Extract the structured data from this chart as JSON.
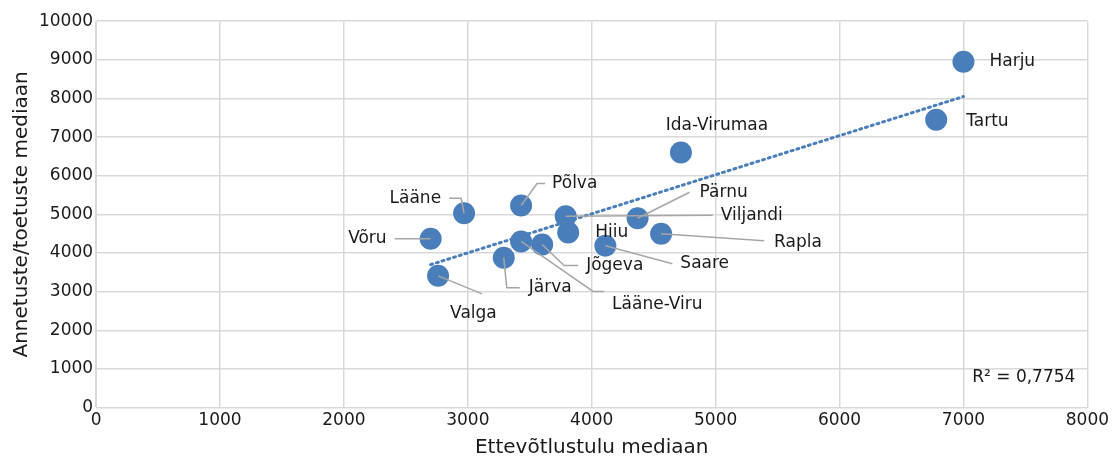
{
  "chart_data": {
    "type": "scatter",
    "xlabel": "Ettevõtlustulu mediaan",
    "ylabel": "Annetuste/toetuste mediaan",
    "xlim": [
      0,
      8000
    ],
    "xticks": [
      0,
      1000,
      2000,
      3000,
      4000,
      5000,
      6000,
      7000,
      8000
    ],
    "ylim": [
      0,
      10000
    ],
    "yticks": [
      0,
      1000,
      2000,
      3000,
      4000,
      5000,
      6000,
      7000,
      8000,
      9000,
      10000
    ],
    "grid": true,
    "legend": false,
    "series": [
      {
        "color": "#4a7ebb",
        "marker": "circle",
        "x": [
          7000,
          6780,
          4720,
          4370,
          3790,
          3810,
          4560,
          4110,
          3600,
          3430,
          3290,
          2760,
          2970,
          3430,
          2700
        ],
        "values": [
          8950,
          7450,
          6600,
          4900,
          4950,
          4530,
          4500,
          4190,
          4220,
          4300,
          3880,
          3410,
          5030,
          5230,
          4370
        ]
      },
      {
        "type": "line",
        "color": "#4a7ebb",
        "line_style": "dotted",
        "marker": "none",
        "x": [
          2700,
          7000
        ],
        "values": [
          3700,
          8050
        ]
      }
    ],
    "annotations": [
      {
        "text": "Harju",
        "x": 7000,
        "y": 8950
      },
      {
        "text": "Tartu",
        "x": 6780,
        "y": 7450
      },
      {
        "text": "Ida-Virumaa",
        "x": 4720,
        "y": 6600
      },
      {
        "text": "Pärnu",
        "x": 4370,
        "y": 4900
      },
      {
        "text": "Viljandi",
        "x": 3790,
        "y": 4950
      },
      {
        "text": "Hiiu",
        "x": 3810,
        "y": 4530
      },
      {
        "text": "Rapla",
        "x": 4560,
        "y": 4500
      },
      {
        "text": "Saare",
        "x": 4110,
        "y": 4190
      },
      {
        "text": "Jõgeva",
        "x": 3600,
        "y": 4220
      },
      {
        "text": "Lääne-Viru",
        "x": 3430,
        "y": 4300
      },
      {
        "text": "Järva",
        "x": 3290,
        "y": 3880
      },
      {
        "text": "Valga",
        "x": 2760,
        "y": 3410
      },
      {
        "text": "Lääne",
        "x": 2970,
        "y": 5030
      },
      {
        "text": "Põlva",
        "x": 3430,
        "y": 5230
      },
      {
        "text": "Võru",
        "x": 2700,
        "y": 4370
      },
      "R² = 0,7754"
    ]
  }
}
